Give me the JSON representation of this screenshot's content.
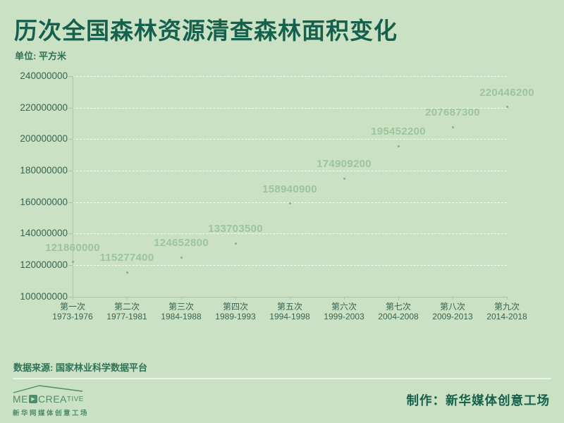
{
  "colors": {
    "bg": "#cae2c3",
    "ink": "#16604e",
    "text": "#2f7257",
    "axis_text": "#3a6352",
    "value_label": "#9dc49a",
    "axis_line": "#aec3a9",
    "grid": "#ffffffd0",
    "dot": "#90a98f",
    "divider": "#ffffff99",
    "logo": "#4e8c6b"
  },
  "chart_data": {
    "type": "scatter",
    "title": "历次全国森林资源清查森林面积变化",
    "unit_label": "单位: 平方米",
    "categories": [
      {
        "name": "第一次",
        "years": "1973-1976"
      },
      {
        "name": "第二次",
        "years": "1977-1981"
      },
      {
        "name": "第三次",
        "years": "1984-1988"
      },
      {
        "name": "第四次",
        "years": "1989-1993"
      },
      {
        "name": "第五次",
        "years": "1994-1998"
      },
      {
        "name": "第六次",
        "years": "1999-2003"
      },
      {
        "name": "第七次",
        "years": "2004-2008"
      },
      {
        "name": "第八次",
        "years": "2009-2013"
      },
      {
        "name": "第九次",
        "years": "2014-2018"
      }
    ],
    "values": [
      121860000,
      115277400,
      124652800,
      133703500,
      158940900,
      174909200,
      195452200,
      207687300,
      220446200
    ],
    "yticks": [
      100000000,
      120000000,
      140000000,
      160000000,
      180000000,
      200000000,
      220000000,
      240000000
    ],
    "ylim": [
      100000000,
      240000000
    ],
    "xlabel": "",
    "ylabel": "平方米",
    "legend": "none",
    "grid": "horizontal-dashed"
  },
  "footer": {
    "source": "数据来源: 国家林业科学数据平台",
    "credit": "制作：新华媒体创意工场",
    "logo": {
      "text_me": "ME",
      "play_glyph": "▶",
      "text_crea": "CREA",
      "text_tive": "TIVE",
      "subtext": "新华网媒体创意工场"
    }
  }
}
